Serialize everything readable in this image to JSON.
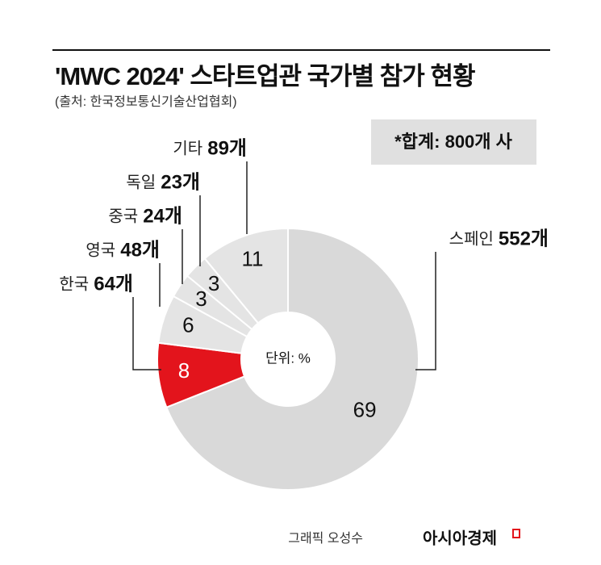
{
  "title": "'MWC 2024' 스타트업관 국가별 참가 현황",
  "source": "(출처: 한국정보통신기술산업협회)",
  "credit": "그래픽 오성수",
  "publisher": "아시아경제",
  "chart_data": {
    "type": "donut",
    "categories": [
      "스페인",
      "한국",
      "영국",
      "중국",
      "독일",
      "기타"
    ],
    "values": [
      69,
      8,
      6,
      3,
      3,
      11
    ],
    "count_labels": [
      "552개",
      "64개",
      "48개",
      "24개",
      "23개",
      "89개"
    ],
    "colors": [
      "#d9d9d9",
      "#e3141c",
      "#e4e4e4",
      "#e4e4e4",
      "#e4e4e4",
      "#e4e4e4"
    ],
    "unit_label": "단위: %",
    "total_label": "*합계: 800개 사"
  }
}
